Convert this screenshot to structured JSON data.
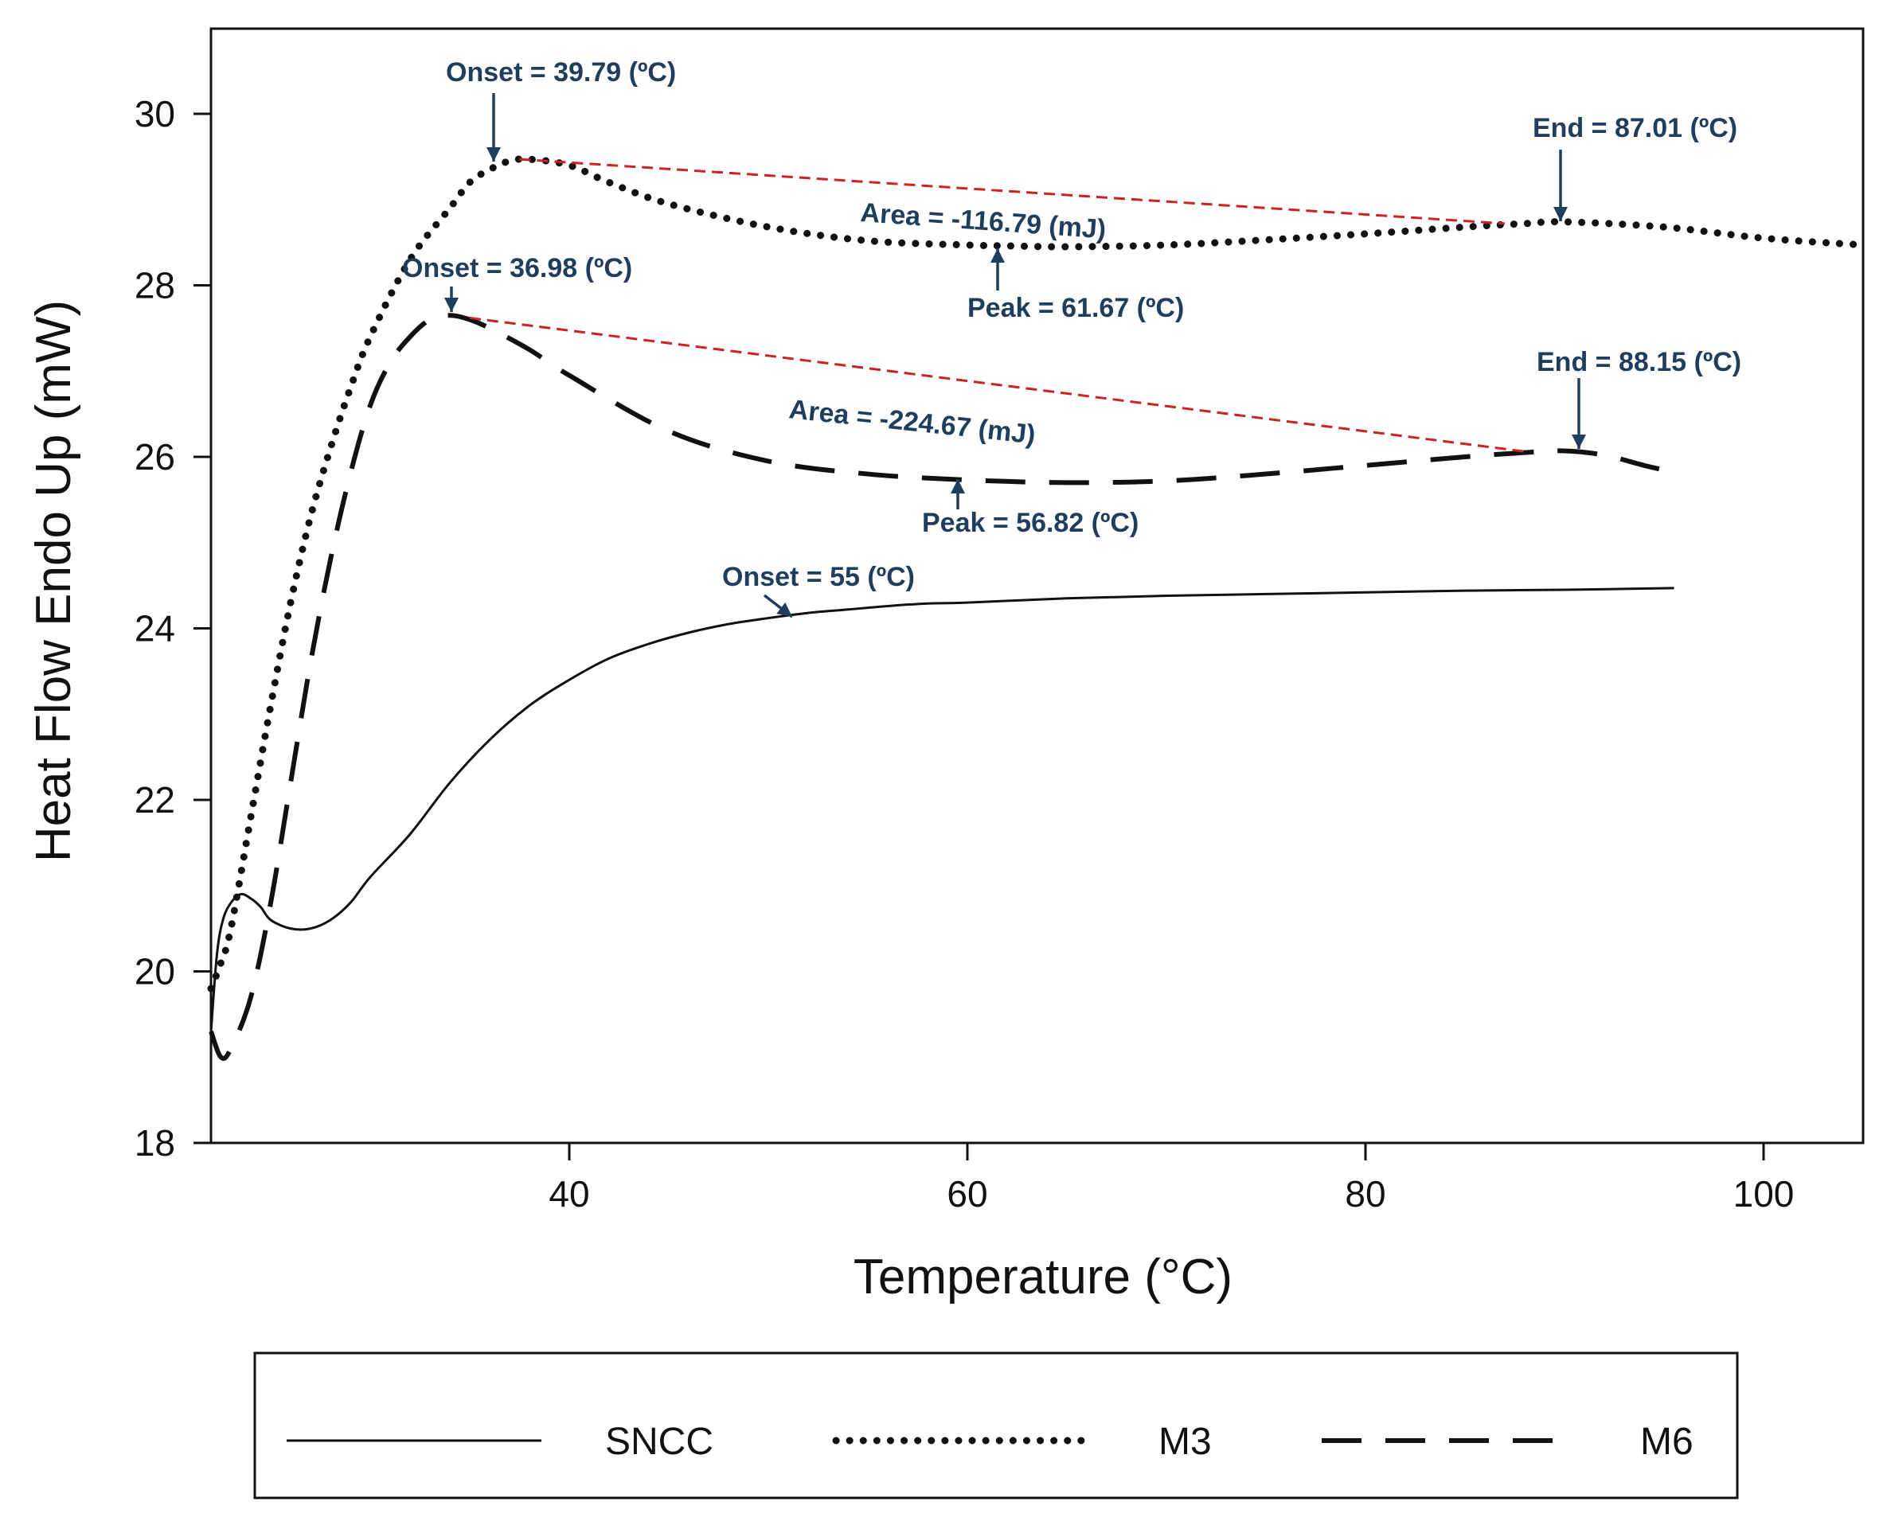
{
  "chart_data": {
    "type": "line",
    "xlabel": "Temperature (°C)",
    "ylabel": "Heat Flow Endo Up (mW)",
    "xlim": [
      22,
      105
    ],
    "ylim": [
      18,
      31
    ],
    "xticks": [
      40,
      60,
      80,
      100
    ],
    "yticks": [
      18,
      20,
      22,
      24,
      26,
      28,
      30
    ],
    "grid": false,
    "legend_position": "bottom",
    "colors": {
      "curve": "#111111",
      "baseline": "#cc2222",
      "annotation": "#1f3d5c"
    },
    "series": [
      {
        "name": "SNCC",
        "style": "solid",
        "x": [
          22,
          22.3,
          22.6,
          23,
          23.5,
          24,
          24.5,
          25,
          26,
          27,
          28,
          29,
          30,
          32,
          34,
          36,
          38,
          40,
          42,
          44,
          46,
          48,
          50,
          52,
          54,
          56,
          58,
          60,
          65,
          70,
          75,
          80,
          85,
          90,
          95.5
        ],
        "y": [
          19.3,
          20.2,
          20.6,
          20.8,
          20.9,
          20.85,
          20.75,
          20.6,
          20.5,
          20.5,
          20.6,
          20.8,
          21.1,
          21.6,
          22.2,
          22.7,
          23.1,
          23.4,
          23.65,
          23.82,
          23.95,
          24.05,
          24.12,
          24.18,
          24.22,
          24.26,
          24.29,
          24.3,
          24.35,
          24.38,
          24.4,
          24.42,
          24.44,
          24.45,
          24.47
        ]
      },
      {
        "name": "M3",
        "style": "dotted",
        "x": [
          22,
          22.5,
          23,
          24,
          25,
          26,
          27,
          28,
          29,
          30,
          32,
          34,
          35,
          36,
          37,
          38,
          40,
          42,
          45,
          50,
          55,
          60,
          62,
          65,
          70,
          75,
          80,
          85,
          88,
          90,
          95,
          100,
          105
        ],
        "y": [
          19.8,
          20.1,
          20.5,
          21.8,
          23.1,
          24.3,
          25.3,
          26.1,
          26.8,
          27.4,
          28.3,
          28.9,
          29.2,
          29.35,
          29.45,
          29.47,
          29.4,
          29.2,
          28.95,
          28.68,
          28.52,
          28.47,
          28.46,
          28.45,
          28.47,
          28.53,
          28.6,
          28.68,
          28.72,
          28.74,
          28.68,
          28.55,
          28.47
        ]
      },
      {
        "name": "M6",
        "style": "dashed",
        "x": [
          22,
          22.5,
          23,
          24,
          25,
          26,
          27,
          28,
          29,
          30,
          31,
          32,
          33,
          34,
          35,
          36,
          38,
          40,
          45,
          50,
          55,
          60,
          65,
          70,
          75,
          80,
          85,
          88,
          90,
          92,
          94,
          95.5
        ],
        "y": [
          19.3,
          19.0,
          19.1,
          19.7,
          20.8,
          22.2,
          23.6,
          24.8,
          25.8,
          26.6,
          27.1,
          27.4,
          27.6,
          27.65,
          27.6,
          27.5,
          27.25,
          26.95,
          26.3,
          25.95,
          25.8,
          25.73,
          25.7,
          25.72,
          25.8,
          25.9,
          26.0,
          26.05,
          26.07,
          26.02,
          25.9,
          25.82
        ]
      }
    ],
    "baselines": [
      {
        "series": "M3",
        "x": [
          37.5,
          87
        ],
        "y": [
          29.47,
          28.72
        ]
      },
      {
        "series": "M6",
        "x": [
          35,
          88.1
        ],
        "y": [
          27.62,
          26.06
        ]
      }
    ],
    "annotations": [
      {
        "id": "m3-onset",
        "text": "Onset = 39.79 (ºC)"
      },
      {
        "id": "m3-end",
        "text": "End = 87.01 (ºC)"
      },
      {
        "id": "m3-area",
        "text": "Area = -116.79 (mJ)"
      },
      {
        "id": "m3-peak",
        "text": "Peak = 61.67 (ºC)"
      },
      {
        "id": "m6-onset",
        "text": "Onset = 36.98 (ºC)"
      },
      {
        "id": "m6-end",
        "text": "End = 88.15 (ºC)"
      },
      {
        "id": "m6-area",
        "text": "Area = -224.67 (mJ)"
      },
      {
        "id": "m6-peak",
        "text": "Peak = 56.82 (ºC)"
      },
      {
        "id": "sncc-onset",
        "text": "Onset = 55 (ºC)"
      }
    ]
  }
}
